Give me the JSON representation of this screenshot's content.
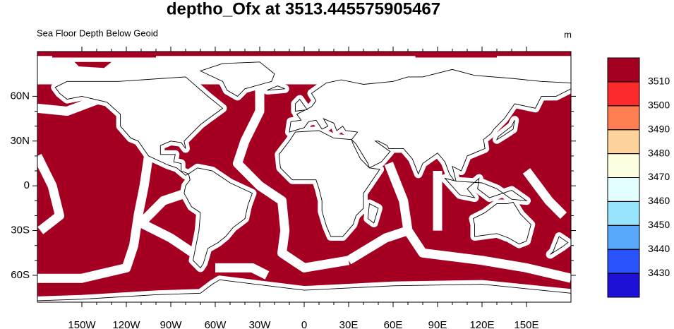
{
  "chart_data": {
    "type": "map",
    "title": "deptho_Ofx at 3513.445575905467",
    "subtitle": "Sea Floor Depth Below Geoid",
    "units": "m",
    "xlim": [
      -180,
      180
    ],
    "ylim": [
      -78,
      90
    ],
    "xticks": [
      {
        "value": -150,
        "label": "150W"
      },
      {
        "value": -120,
        "label": "120W"
      },
      {
        "value": -90,
        "label": "90W"
      },
      {
        "value": -60,
        "label": "60W"
      },
      {
        "value": -30,
        "label": "30W"
      },
      0,
      {
        "value": 30,
        "label": "30E"
      },
      {
        "value": 60,
        "label": "60E"
      },
      {
        "value": 90,
        "label": "90E"
      },
      {
        "value": 120,
        "label": "120E"
      },
      {
        "value": 150,
        "label": "150E"
      }
    ],
    "yticks": [
      {
        "value": -60,
        "label": "60S"
      },
      {
        "value": -30,
        "label": "30S"
      },
      0,
      {
        "value": 30,
        "label": "30N"
      },
      {
        "value": 60,
        "label": "60N"
      }
    ],
    "colorbar": {
      "levels": [
        3430,
        3440,
        3450,
        3460,
        3470,
        3480,
        3490,
        3500,
        3510
      ],
      "colors": [
        "#1e0fd6",
        "#2a52fc",
        "#58a8fb",
        "#96e4fd",
        "#e2fefe",
        "#fefee2",
        "#fed49c",
        "#fe7e52",
        "#fd2a2c",
        "#a50021"
      ]
    }
  }
}
